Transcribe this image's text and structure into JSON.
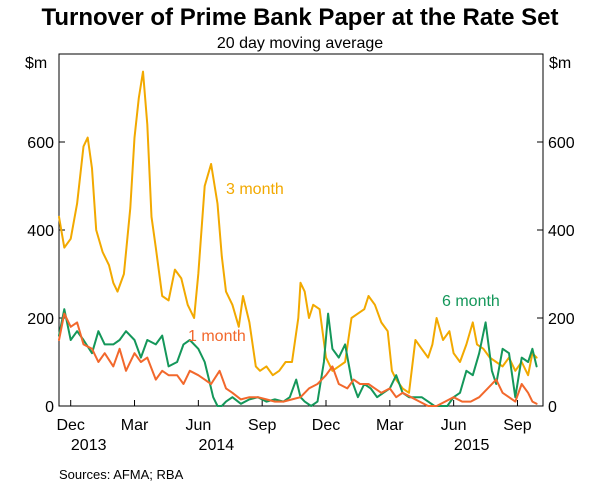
{
  "chart_data": {
    "type": "line",
    "title": "Turnover of Prime Bank Paper at the Rate Set",
    "subtitle": "20 day moving average",
    "unit_left": "$m",
    "unit_right": "$m",
    "ylim": [
      0,
      800
    ],
    "yticks": [
      0,
      200,
      400,
      600
    ],
    "ytick_labels": [
      "0",
      "200",
      "400",
      "600"
    ],
    "xticks": [
      {
        "month": "Dec",
        "year": "2013",
        "pos": 0
      },
      {
        "month": "Mar",
        "year": "",
        "pos": 3
      },
      {
        "month": "Jun",
        "year": "2014",
        "pos": 6
      },
      {
        "month": "Sep",
        "year": "",
        "pos": 9
      },
      {
        "month": "Dec",
        "year": "",
        "pos": 12
      },
      {
        "month": "Mar",
        "year": "",
        "pos": 15
      },
      {
        "month": "Jun",
        "year": "2015",
        "pos": 18
      },
      {
        "month": "Sep",
        "year": "",
        "pos": 21
      }
    ],
    "xlim": [
      -0.55,
      22.2
    ],
    "grid": false,
    "source": "Sources:  AFMA; RBA",
    "series": [
      {
        "name": "3 month",
        "color": "#F2A900",
        "x": [
          -0.55,
          -0.3,
          0,
          0.3,
          0.6,
          0.8,
          1.0,
          1.2,
          1.5,
          1.8,
          2.0,
          2.2,
          2.5,
          2.8,
          3.0,
          3.2,
          3.4,
          3.6,
          3.8,
          4.0,
          4.3,
          4.6,
          4.9,
          5.2,
          5.5,
          5.8,
          6.0,
          6.3,
          6.6,
          6.9,
          7.1,
          7.3,
          7.6,
          7.9,
          8.1,
          8.4,
          8.7,
          8.9,
          9.2,
          9.5,
          9.8,
          10.1,
          10.4,
          10.7,
          10.8,
          11.0,
          11.2,
          11.4,
          11.7,
          12.0,
          12.3,
          12.6,
          12.9,
          13.2,
          13.5,
          13.8,
          14.0,
          14.3,
          14.6,
          14.9,
          15.1,
          15.3,
          15.6,
          15.9,
          16.2,
          16.5,
          16.8,
          17.0,
          17.2,
          17.5,
          17.8,
          18.0,
          18.3,
          18.6,
          18.9,
          19.1,
          19.4,
          19.7,
          20.0,
          20.3,
          20.6,
          20.9,
          21.2,
          21.5,
          21.7,
          21.9
        ],
        "values": [
          430,
          360,
          380,
          460,
          590,
          610,
          540,
          400,
          350,
          320,
          280,
          260,
          300,
          450,
          610,
          700,
          760,
          640,
          430,
          360,
          250,
          240,
          310,
          290,
          230,
          200,
          300,
          500,
          550,
          460,
          340,
          260,
          230,
          180,
          250,
          190,
          90,
          80,
          90,
          70,
          80,
          100,
          100,
          200,
          280,
          260,
          200,
          230,
          220,
          110,
          80,
          90,
          100,
          200,
          210,
          220,
          250,
          230,
          190,
          170,
          80,
          60,
          40,
          30,
          150,
          130,
          110,
          140,
          200,
          150,
          170,
          120,
          100,
          140,
          190,
          140,
          130,
          110,
          100,
          90,
          110,
          80,
          100,
          70,
          120,
          110
        ]
      },
      {
        "name": "6 month",
        "color": "#14975A",
        "x": [
          -0.55,
          -0.3,
          0,
          0.3,
          0.6,
          1.0,
          1.3,
          1.6,
          2.0,
          2.3,
          2.6,
          3.0,
          3.3,
          3.6,
          4.0,
          4.3,
          4.6,
          5.0,
          5.3,
          5.6,
          6.0,
          6.3,
          6.5,
          6.7,
          6.9,
          7.1,
          7.3,
          7.6,
          8.0,
          8.4,
          8.8,
          9.2,
          9.6,
          10.0,
          10.3,
          10.6,
          10.8,
          11.0,
          11.3,
          11.6,
          11.9,
          12.1,
          12.3,
          12.6,
          12.9,
          13.2,
          13.5,
          13.8,
          14.1,
          14.4,
          14.7,
          15.0,
          15.3,
          15.6,
          15.9,
          16.2,
          16.5,
          16.8,
          17.1,
          17.4,
          17.7,
          18.0,
          18.3,
          18.6,
          18.9,
          19.2,
          19.5,
          19.8,
          20.0,
          20.3,
          20.6,
          20.9,
          21.2,
          21.5,
          21.7,
          21.9
        ],
        "values": [
          160,
          220,
          150,
          170,
          150,
          120,
          170,
          140,
          140,
          150,
          170,
          150,
          110,
          150,
          140,
          160,
          90,
          100,
          140,
          150,
          130,
          100,
          60,
          20,
          0,
          0,
          10,
          20,
          5,
          15,
          20,
          10,
          15,
          10,
          20,
          60,
          20,
          10,
          0,
          10,
          100,
          210,
          130,
          110,
          140,
          60,
          20,
          50,
          40,
          20,
          30,
          40,
          70,
          30,
          20,
          20,
          20,
          10,
          0,
          0,
          0,
          20,
          30,
          80,
          70,
          120,
          190,
          80,
          50,
          130,
          120,
          20,
          110,
          100,
          130,
          90
        ]
      },
      {
        "name": "1 month",
        "color": "#F2682C",
        "x": [
          -0.55,
          -0.3,
          0,
          0.3,
          0.6,
          1.0,
          1.3,
          1.6,
          2.0,
          2.3,
          2.6,
          3.0,
          3.3,
          3.6,
          4.0,
          4.3,
          4.6,
          5.0,
          5.3,
          5.6,
          6.0,
          6.3,
          6.6,
          7.0,
          7.3,
          7.6,
          8.0,
          8.4,
          8.8,
          9.2,
          9.6,
          10.0,
          10.4,
          10.8,
          11.2,
          11.6,
          12.0,
          12.3,
          12.6,
          13.0,
          13.3,
          13.6,
          14.0,
          14.3,
          14.6,
          15.0,
          15.3,
          15.6,
          16.0,
          16.4,
          16.8,
          17.2,
          17.6,
          18.0,
          18.4,
          18.8,
          19.2,
          19.6,
          20.0,
          20.3,
          20.6,
          20.9,
          21.2,
          21.5,
          21.7,
          21.9
        ],
        "values": [
          150,
          210,
          180,
          190,
          140,
          130,
          100,
          120,
          90,
          130,
          80,
          120,
          100,
          110,
          60,
          80,
          70,
          70,
          50,
          80,
          70,
          60,
          50,
          80,
          40,
          30,
          15,
          20,
          20,
          15,
          10,
          10,
          15,
          20,
          40,
          50,
          70,
          90,
          50,
          40,
          60,
          50,
          50,
          40,
          30,
          40,
          20,
          30,
          20,
          10,
          0,
          0,
          10,
          20,
          10,
          10,
          20,
          40,
          60,
          30,
          20,
          10,
          50,
          30,
          10,
          5
        ]
      }
    ]
  }
}
